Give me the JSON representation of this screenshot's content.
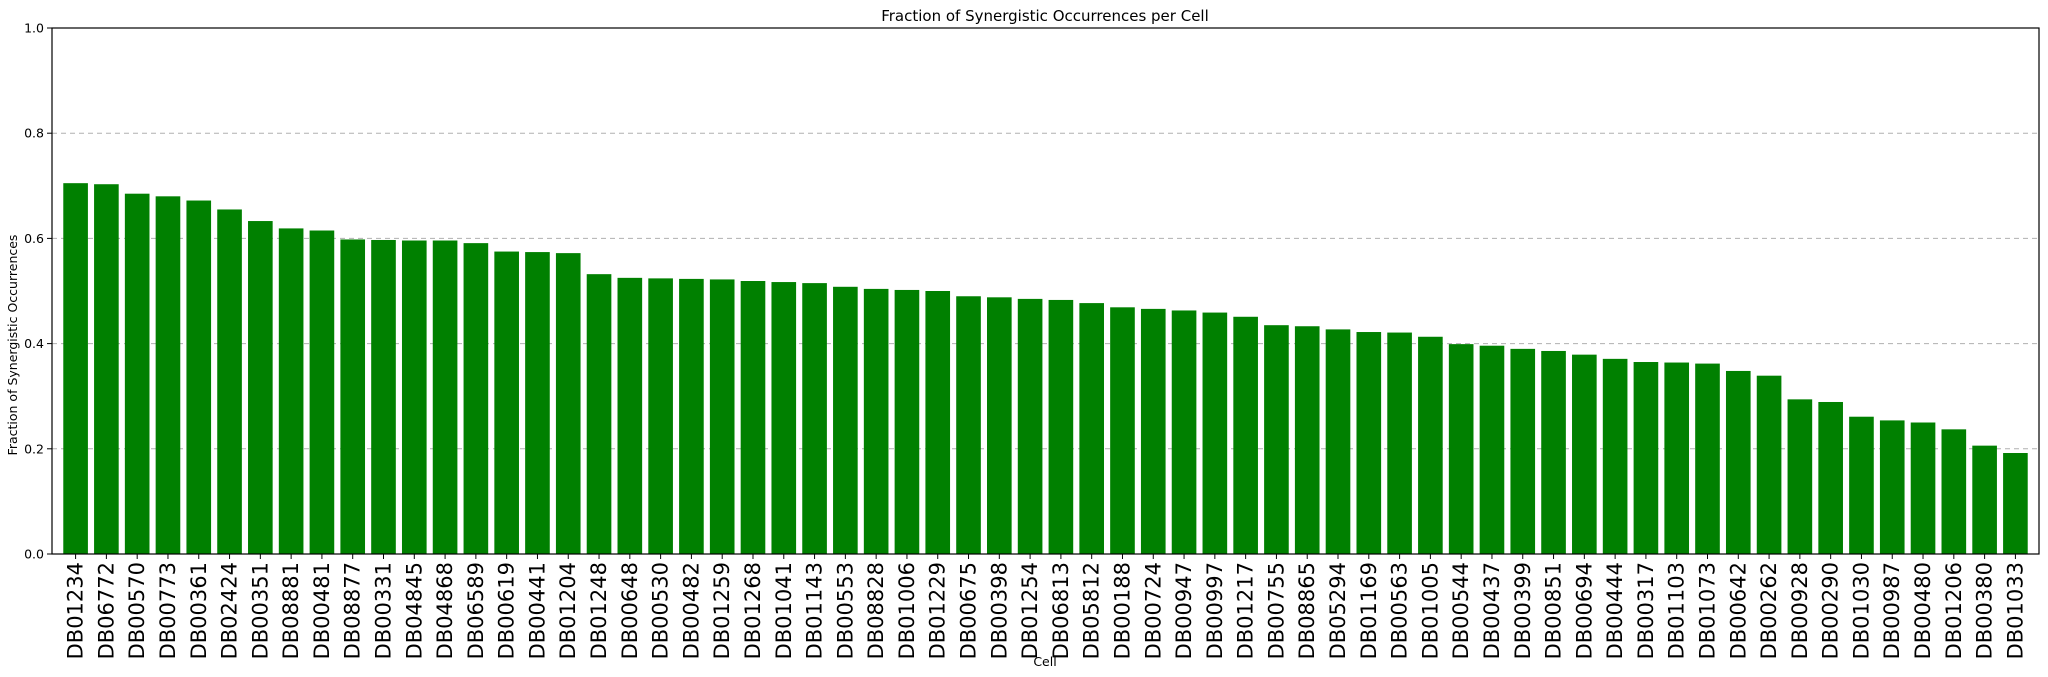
{
  "chart_data": {
    "type": "bar",
    "title": "Fraction of Synergistic Occurrences per Cell",
    "xlabel": "Cell",
    "ylabel": "Fraction of Synergistic Occurrences",
    "ylim": [
      0,
      1
    ],
    "yticks": [
      "0.0",
      "0.2",
      "0.4",
      "0.6",
      "0.8",
      "1.0"
    ],
    "grid": "y-dashed",
    "bar_color": "#008000",
    "categories": [
      "DB01234",
      "DB06772",
      "DB00570",
      "DB00773",
      "DB00361",
      "DB02424",
      "DB00351",
      "DB08881",
      "DB00481",
      "DB08877",
      "DB00331",
      "DB04845",
      "DB04868",
      "DB06589",
      "DB00619",
      "DB00441",
      "DB01204",
      "DB01248",
      "DB00648",
      "DB00530",
      "DB00482",
      "DB01259",
      "DB01268",
      "DB01041",
      "DB01143",
      "DB00553",
      "DB08828",
      "DB01006",
      "DB01229",
      "DB00675",
      "DB00398",
      "DB01254",
      "DB06813",
      "DB05812",
      "DB00188",
      "DB00724",
      "DB00947",
      "DB00997",
      "DB01217",
      "DB00755",
      "DB08865",
      "DB05294",
      "DB01169",
      "DB00563",
      "DB01005",
      "DB00544",
      "DB00437",
      "DB00399",
      "DB00851",
      "DB00694",
      "DB00444",
      "DB00317",
      "DB01103",
      "DB01073",
      "DB00642",
      "DB00262",
      "DB00928",
      "DB00290",
      "DB01030",
      "DB00987",
      "DB00480",
      "DB01206",
      "DB00380",
      "DB01033"
    ],
    "values": [
      0.705,
      0.703,
      0.685,
      0.68,
      0.672,
      0.655,
      0.633,
      0.619,
      0.615,
      0.598,
      0.597,
      0.596,
      0.596,
      0.591,
      0.575,
      0.574,
      0.572,
      0.532,
      0.525,
      0.524,
      0.523,
      0.522,
      0.519,
      0.517,
      0.515,
      0.508,
      0.504,
      0.502,
      0.5,
      0.49,
      0.488,
      0.485,
      0.483,
      0.477,
      0.469,
      0.466,
      0.463,
      0.459,
      0.451,
      0.435,
      0.433,
      0.427,
      0.422,
      0.421,
      0.413,
      0.399,
      0.396,
      0.39,
      0.386,
      0.379,
      0.371,
      0.365,
      0.364,
      0.362,
      0.348,
      0.339,
      0.294,
      0.289,
      0.261,
      0.254,
      0.25,
      0.237,
      0.206,
      0.192
    ]
  }
}
